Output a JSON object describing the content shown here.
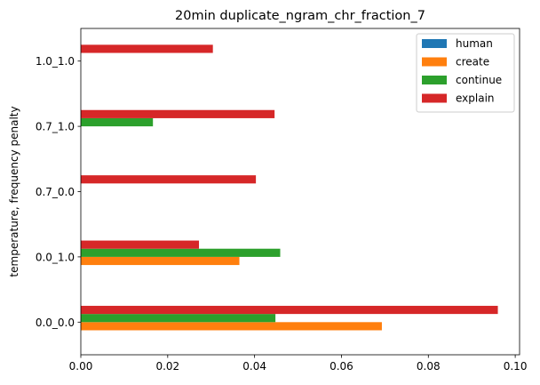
{
  "chart_data": {
    "type": "bar",
    "orientation": "horizontal",
    "title": "20min duplicate_ngram_chr_fraction_7",
    "xlabel": "",
    "ylabel": "temperature, frequency penalty",
    "categories": [
      "0.0_0.0",
      "0.0_1.0",
      "0.7_0.0",
      "0.7_1.0",
      "1.0_1.0"
    ],
    "xlim": [
      0,
      0.101
    ],
    "xticks": [
      0.0,
      0.02,
      0.04,
      0.06,
      0.08,
      0.1
    ],
    "xtick_labels": [
      "0.00",
      "0.02",
      "0.04",
      "0.06",
      "0.08",
      "0.10"
    ],
    "grid": false,
    "legend_position": "top-right",
    "series": [
      {
        "name": "human",
        "color": "#1f77b4",
        "values": [
          0,
          0,
          0,
          0,
          0
        ]
      },
      {
        "name": "create",
        "color": "#ff7f0e",
        "values": [
          0.0693,
          0.0365,
          0,
          0,
          0
        ]
      },
      {
        "name": "continue",
        "color": "#2ca02c",
        "values": [
          0.0448,
          0.0459,
          0,
          0.0166,
          0
        ]
      },
      {
        "name": "explain",
        "color": "#d62728",
        "values": [
          0.096,
          0.0272,
          0.0403,
          0.0446,
          0.0304
        ]
      }
    ]
  }
}
